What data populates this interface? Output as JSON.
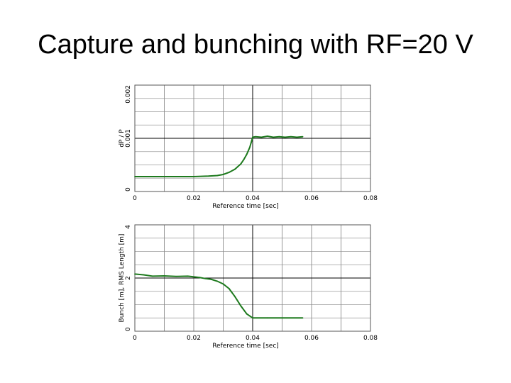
{
  "slide": {
    "title": "Capture and bunching with RF=20 V"
  },
  "chart_data": [
    {
      "type": "line",
      "xlabel": "Reference time [sec]",
      "ylabel": "dP / P",
      "xlim": [
        0,
        0.08
      ],
      "ylim": [
        0,
        0.002
      ],
      "xticks": [
        "0",
        "0.02",
        "0.04",
        "0.06",
        "0.08"
      ],
      "yticks": [
        "0",
        "0.001",
        "0.002"
      ],
      "grid": true,
      "line_color": "#1e7a1e",
      "series": [
        {
          "x": [
            0,
            0.005,
            0.01,
            0.015,
            0.02,
            0.025,
            0.028,
            0.03,
            0.032,
            0.034,
            0.036,
            0.037,
            0.038,
            0.039,
            0.0395,
            0.04,
            0.041,
            0.043,
            0.045,
            0.047,
            0.049,
            0.051,
            0.053,
            0.055,
            0.057
          ],
          "y": [
            0.00028,
            0.00028,
            0.00028,
            0.00028,
            0.00028,
            0.00029,
            0.0003,
            0.00032,
            0.00036,
            0.00042,
            0.00052,
            0.0006,
            0.0007,
            0.00083,
            0.00092,
            0.00102,
            0.00103,
            0.00102,
            0.00104,
            0.00102,
            0.00103,
            0.00102,
            0.00103,
            0.00102,
            0.00103
          ]
        }
      ]
    },
    {
      "type": "line",
      "xlabel": "Reference time [sec]",
      "ylabel": "Bunch [m], RMS Length [m]",
      "xlim": [
        0,
        0.08
      ],
      "ylim": [
        0,
        4
      ],
      "xticks": [
        "0",
        "0.02",
        "0.04",
        "0.06",
        "0.08"
      ],
      "yticks": [
        "0",
        "2",
        "4"
      ],
      "grid": true,
      "line_color": "#1e7a1e",
      "series": [
        {
          "x": [
            0,
            0.003,
            0.006,
            0.01,
            0.014,
            0.018,
            0.022,
            0.024,
            0.026,
            0.028,
            0.03,
            0.032,
            0.034,
            0.036,
            0.038,
            0.04,
            0.045,
            0.05,
            0.057
          ],
          "y": [
            2.15,
            2.12,
            2.07,
            2.08,
            2.06,
            2.07,
            2.02,
            1.98,
            1.95,
            1.88,
            1.78,
            1.6,
            1.3,
            0.95,
            0.65,
            0.5,
            0.5,
            0.5,
            0.5
          ]
        }
      ]
    }
  ]
}
